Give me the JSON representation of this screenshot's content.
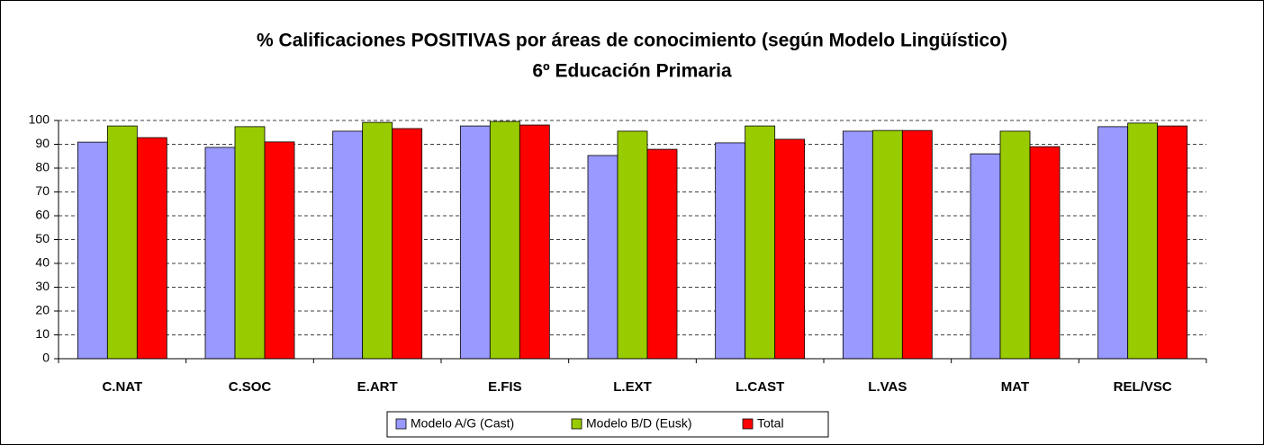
{
  "chart_data": {
    "type": "bar",
    "title": "% Calificaciones POSITIVAS por áreas de conocimiento (según Modelo Lingüístico)",
    "subtitle": "6º Educación Primaria",
    "categories": [
      "C.NAT",
      "C.SOC",
      "E.ART",
      "E.FIS",
      "L.EXT",
      "L.CAST",
      "L.VAS",
      "MAT",
      "REL/VSC"
    ],
    "series": [
      {
        "name": "Modelo A/G (Cast)",
        "color": "#9999ff",
        "values": [
          90.9,
          88.7,
          95.5,
          97.7,
          85.3,
          90.6,
          95.5,
          86,
          97.4
        ]
      },
      {
        "name": "Modelo B/D (Eusk)",
        "color": "#99cc00",
        "values": [
          97.7,
          97.4,
          99.2,
          99.6,
          95.5,
          97.7,
          95.8,
          95.5,
          98.9
        ]
      },
      {
        "name": "Total",
        "color": "#ff0000",
        "values": [
          92.8,
          91,
          96.6,
          98.1,
          87.9,
          92.1,
          95.8,
          89,
          97.7
        ]
      }
    ],
    "ylim": [
      0,
      100
    ],
    "yticks": [
      0,
      10,
      20,
      30,
      40,
      50,
      60,
      70,
      80,
      90,
      100
    ],
    "grid": true,
    "legend": "bottom"
  }
}
